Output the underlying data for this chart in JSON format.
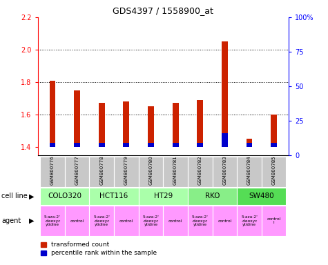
{
  "title": "GDS4397 / 1558900_at",
  "samples": [
    "GSM800776",
    "GSM800777",
    "GSM800778",
    "GSM800779",
    "GSM800780",
    "GSM800781",
    "GSM800782",
    "GSM800783",
    "GSM800784",
    "GSM800785"
  ],
  "red_values": [
    1.81,
    1.75,
    1.67,
    1.68,
    1.65,
    1.67,
    1.69,
    2.05,
    1.45,
    1.6
  ],
  "blue_values": [
    3,
    3,
    3,
    3,
    3,
    3,
    3,
    10,
    3,
    3
  ],
  "ylim_left": [
    1.35,
    2.2
  ],
  "ylim_right": [
    0,
    100
  ],
  "yticks_left": [
    1.4,
    1.6,
    1.8,
    2.0,
    2.2
  ],
  "yticks_right": [
    0,
    25,
    50,
    75,
    100
  ],
  "ytick_labels_right": [
    "0",
    "25",
    "50",
    "75",
    "100%"
  ],
  "bar_color_red": "#cc2200",
  "bar_color_blue": "#0000cc",
  "baseline": 1.4,
  "bar_width": 0.25,
  "legend_red": "transformed count",
  "legend_blue": "percentile rank within the sample",
  "cell_line_groups": [
    {
      "label": "COLO320",
      "start": 0,
      "end": 2,
      "color": "#aaffaa"
    },
    {
      "label": "HCT116",
      "start": 2,
      "end": 4,
      "color": "#aaffaa"
    },
    {
      "label": "HT29",
      "start": 4,
      "end": 6,
      "color": "#aaffaa"
    },
    {
      "label": "RKO",
      "start": 6,
      "end": 8,
      "color": "#88ee88"
    },
    {
      "label": "SW480",
      "start": 8,
      "end": 10,
      "color": "#55dd55"
    }
  ],
  "agent_labels": [
    "5-aza-2'\n-deoxyc\nytidine",
    "control",
    "5-aza-2'\n-deoxyc\nytidine",
    "control",
    "5-aza-2'\n-deoxyc\nytidine",
    "control",
    "5-aza-2'\n-deoxyc\nytidine",
    "control",
    "5-aza-2'\n-deoxyc\nytidine",
    "control\nl"
  ],
  "agent_color": "#ff99ff",
  "sample_bg": "#c8c8c8"
}
